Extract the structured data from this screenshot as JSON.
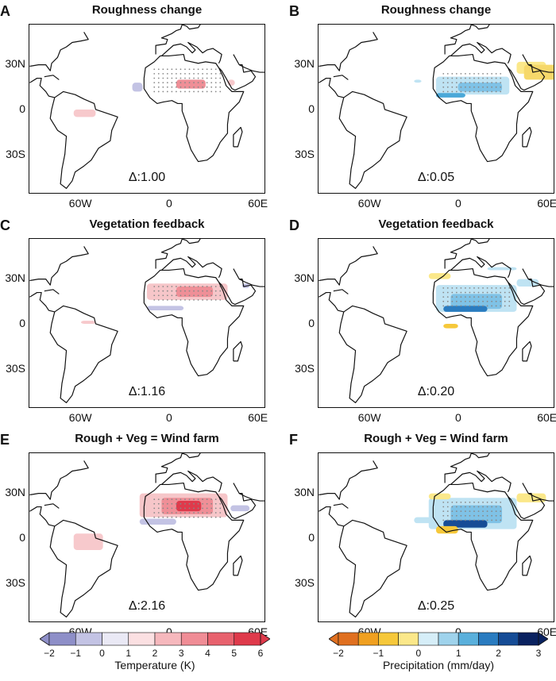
{
  "panels": [
    {
      "letter": "A",
      "title": "Roughness change",
      "delta": "Δ:1.00",
      "var": "temp"
    },
    {
      "letter": "B",
      "title": "Roughness change",
      "delta": "Δ:0.05",
      "var": "precip"
    },
    {
      "letter": "C",
      "title": "Vegetation feedback",
      "delta": "Δ:1.16",
      "var": "temp"
    },
    {
      "letter": "D",
      "title": "Vegetation feedback",
      "delta": "Δ:0.20",
      "var": "precip"
    },
    {
      "letter": "E",
      "title": "Rough + Veg = Wind farm",
      "delta": "Δ:2.16",
      "var": "temp"
    },
    {
      "letter": "F",
      "title": "Rough + Veg = Wind farm",
      "delta": "Δ:0.25",
      "var": "precip"
    }
  ],
  "axes": {
    "lat_labels": [
      "30N",
      "0",
      "30S"
    ],
    "lon_labels": [
      "60W",
      "0",
      "60E"
    ]
  },
  "colorbars": {
    "temperature": {
      "label": "Temperature (K)",
      "ticks": [
        "−2",
        "−1",
        "0",
        "1",
        "2",
        "3",
        "4",
        "5",
        "6"
      ],
      "colors": [
        "#8e8fc8",
        "#c3c3e4",
        "#eae9f5",
        "#fbe0e2",
        "#f6b8bd",
        "#f08d96",
        "#e8626e",
        "#df3a4b"
      ]
    },
    "precipitation": {
      "label": "Precipitation (mm/day)",
      "ticks": [
        "−2",
        "−1",
        "0",
        "1",
        "2",
        "3"
      ],
      "colors": [
        "#e07020",
        "#f0a020",
        "#f6c83a",
        "#fbe88a",
        "#d6eef8",
        "#9fd3ec",
        "#5ab0dc",
        "#2a7cc0",
        "#164c96",
        "#0a2260"
      ]
    }
  },
  "colors": {
    "outline": "#111111",
    "stipple": "#888888"
  }
}
